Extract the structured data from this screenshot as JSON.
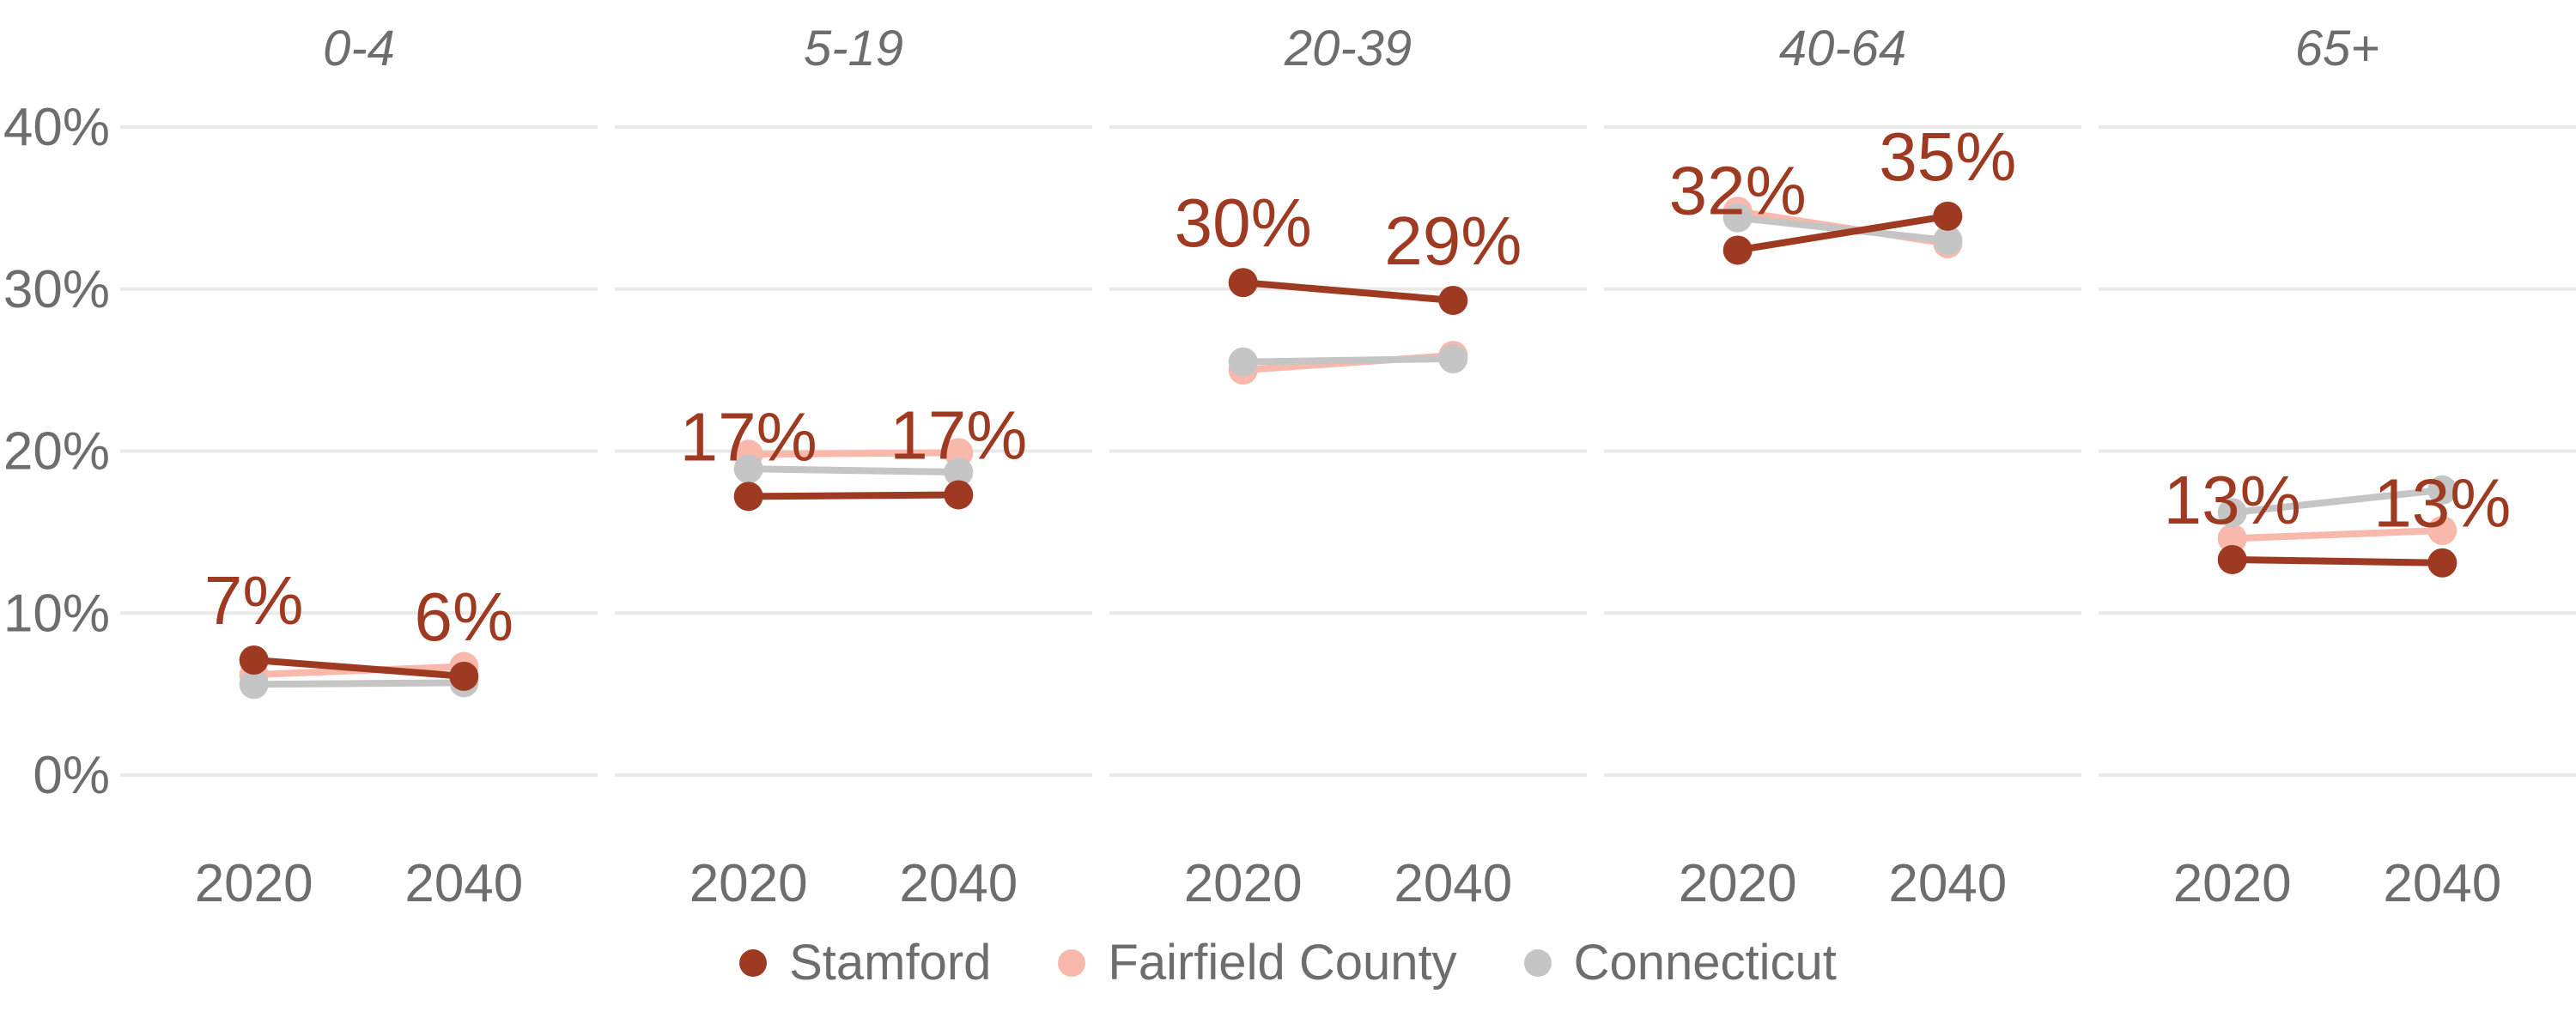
{
  "chart_data": {
    "type": "line",
    "subtype": "faceted-slopegraph",
    "title": "",
    "x": [
      "2020",
      "2040"
    ],
    "ylim": [
      0,
      40
    ],
    "ytick_values": [
      40,
      30,
      20,
      10,
      0
    ],
    "ytick_labels": [
      "40%",
      "30%",
      "20%",
      "10%",
      "0%"
    ],
    "grid": true,
    "legend_position": "bottom",
    "label_series": "Stamford",
    "series_meta": [
      {
        "name": "Fairfield County",
        "color": "#f8b8ac",
        "z": 1
      },
      {
        "name": "Connecticut",
        "color": "#c5c5c5",
        "z": 2
      },
      {
        "name": "Stamford",
        "color": "#9e3a21",
        "z": 3
      }
    ],
    "legend_order": [
      "Stamford",
      "Fairfield County",
      "Connecticut"
    ],
    "facets": [
      {
        "title": "0-4",
        "series": {
          "Stamford": [
            7.1,
            6.1
          ],
          "Fairfield County": [
            6.2,
            6.7
          ],
          "Connecticut": [
            5.6,
            5.7
          ]
        },
        "point_labels": [
          "7%",
          "6%"
        ]
      },
      {
        "title": "5-19",
        "series": {
          "Stamford": [
            17.2,
            17.3
          ],
          "Fairfield County": [
            19.8,
            19.9
          ],
          "Connecticut": [
            18.9,
            18.7
          ]
        },
        "point_labels": [
          "17%",
          "17%"
        ]
      },
      {
        "title": "20-39",
        "series": {
          "Stamford": [
            30.4,
            29.3
          ],
          "Fairfield County": [
            25.0,
            25.9
          ],
          "Connecticut": [
            25.5,
            25.7
          ]
        },
        "point_labels": [
          "30%",
          "29%"
        ]
      },
      {
        "title": "40-64",
        "series": {
          "Stamford": [
            32.4,
            34.5
          ],
          "Fairfield County": [
            34.8,
            32.8
          ],
          "Connecticut": [
            34.4,
            33.0
          ]
        },
        "point_labels": [
          "32%",
          "35%"
        ]
      },
      {
        "title": "65+",
        "series": {
          "Stamford": [
            13.3,
            13.1
          ],
          "Fairfield County": [
            14.6,
            15.1
          ],
          "Connecticut": [
            16.2,
            17.6
          ]
        },
        "point_labels": [
          "13%",
          "13%"
        ]
      }
    ]
  },
  "colors": {
    "background": "#ffffff",
    "gridline": "#e9e9e9",
    "axis_text": "#6d6d6d",
    "facet_title_text": "#6d6d6d",
    "data_label_text": "#9e3a21"
  },
  "legend": {
    "items": [
      {
        "label": "Stamford",
        "color": "#9e3a21"
      },
      {
        "label": "Fairfield County",
        "color": "#f8b8ac"
      },
      {
        "label": "Connecticut",
        "color": "#c5c5c5"
      }
    ]
  }
}
